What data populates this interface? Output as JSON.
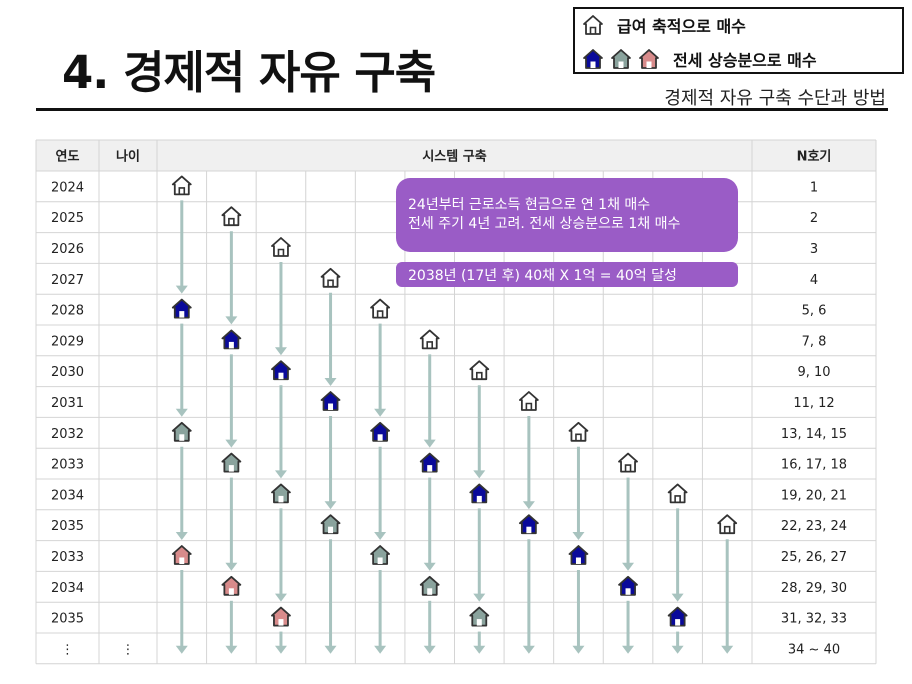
{
  "title": "4. 경제적 자유 구축",
  "subtitle": "경제적 자유 구축 수단과 방법",
  "legend": {
    "row1_label": "급여 축적으로 매수",
    "row2_label": "전세 상승분으로 매수"
  },
  "colors": {
    "outline": "#ffffff",
    "navy": "#0a0a9a",
    "gray": "#8aa39d",
    "pink": "#d88b8b",
    "arrow": "#a8c3bf",
    "callout": "#9a5cc6"
  },
  "table": {
    "headers": {
      "year": "연도",
      "age": "나이",
      "system": "시스템 구축",
      "n": "N호기"
    },
    "rows": [
      {
        "year": "2024",
        "age": "",
        "n": "1"
      },
      {
        "year": "2025",
        "age": "",
        "n": "2"
      },
      {
        "year": "2026",
        "age": "",
        "n": "3"
      },
      {
        "year": "2027",
        "age": "",
        "n": "4"
      },
      {
        "year": "2028",
        "age": "",
        "n": "5, 6"
      },
      {
        "year": "2029",
        "age": "",
        "n": "7, 8"
      },
      {
        "year": "2030",
        "age": "",
        "n": "9, 10"
      },
      {
        "year": "2031",
        "age": "",
        "n": "11, 12"
      },
      {
        "year": "2032",
        "age": "",
        "n": "13, 14, 15"
      },
      {
        "year": "2033",
        "age": "",
        "n": "16, 17, 18"
      },
      {
        "year": "2034",
        "age": "",
        "n": "19, 20, 21"
      },
      {
        "year": "2035",
        "age": "",
        "n": "22, 23, 24"
      },
      {
        "year": "2033",
        "age": "",
        "n": "25, 26, 27"
      },
      {
        "year": "2034",
        "age": "",
        "n": "28, 29, 30"
      },
      {
        "year": "2035",
        "age": "",
        "n": "31, 32, 33"
      },
      {
        "year": "⋮",
        "age": "⋮",
        "n": "34 ~ 40"
      }
    ]
  },
  "callouts": {
    "line1": "24년부터 근로소득 현금으로 연 1채 매수",
    "line2": "전세 주기 4년 고려. 전세 상승분으로 1채 매수",
    "goal": "2038년 (17년  후) 40채 X 1억 = 40억 달성"
  },
  "houses": [
    {
      "col": 0,
      "row": 0,
      "type": "outline"
    },
    {
      "col": 1,
      "row": 1,
      "type": "outline"
    },
    {
      "col": 2,
      "row": 2,
      "type": "outline"
    },
    {
      "col": 3,
      "row": 3,
      "type": "outline"
    },
    {
      "col": 0,
      "row": 4,
      "type": "navy"
    },
    {
      "col": 4,
      "row": 4,
      "type": "outline"
    },
    {
      "col": 1,
      "row": 5,
      "type": "navy"
    },
    {
      "col": 5,
      "row": 5,
      "type": "outline"
    },
    {
      "col": 2,
      "row": 6,
      "type": "navy"
    },
    {
      "col": 6,
      "row": 6,
      "type": "outline"
    },
    {
      "col": 3,
      "row": 7,
      "type": "navy"
    },
    {
      "col": 7,
      "row": 7,
      "type": "outline"
    },
    {
      "col": 0,
      "row": 8,
      "type": "gray"
    },
    {
      "col": 4,
      "row": 8,
      "type": "navy"
    },
    {
      "col": 8,
      "row": 8,
      "type": "outline"
    },
    {
      "col": 1,
      "row": 9,
      "type": "gray"
    },
    {
      "col": 5,
      "row": 9,
      "type": "navy"
    },
    {
      "col": 9,
      "row": 9,
      "type": "outline"
    },
    {
      "col": 2,
      "row": 10,
      "type": "gray"
    },
    {
      "col": 6,
      "row": 10,
      "type": "navy"
    },
    {
      "col": 10,
      "row": 10,
      "type": "outline"
    },
    {
      "col": 3,
      "row": 11,
      "type": "gray"
    },
    {
      "col": 7,
      "row": 11,
      "type": "navy"
    },
    {
      "col": 11,
      "row": 11,
      "type": "outline"
    },
    {
      "col": 0,
      "row": 12,
      "type": "pink"
    },
    {
      "col": 4,
      "row": 12,
      "type": "gray"
    },
    {
      "col": 8,
      "row": 12,
      "type": "navy"
    },
    {
      "col": 1,
      "row": 13,
      "type": "pink"
    },
    {
      "col": 5,
      "row": 13,
      "type": "gray"
    },
    {
      "col": 9,
      "row": 13,
      "type": "navy"
    },
    {
      "col": 2,
      "row": 14,
      "type": "pink"
    },
    {
      "col": 6,
      "row": 14,
      "type": "gray"
    },
    {
      "col": 10,
      "row": 14,
      "type": "navy"
    }
  ]
}
